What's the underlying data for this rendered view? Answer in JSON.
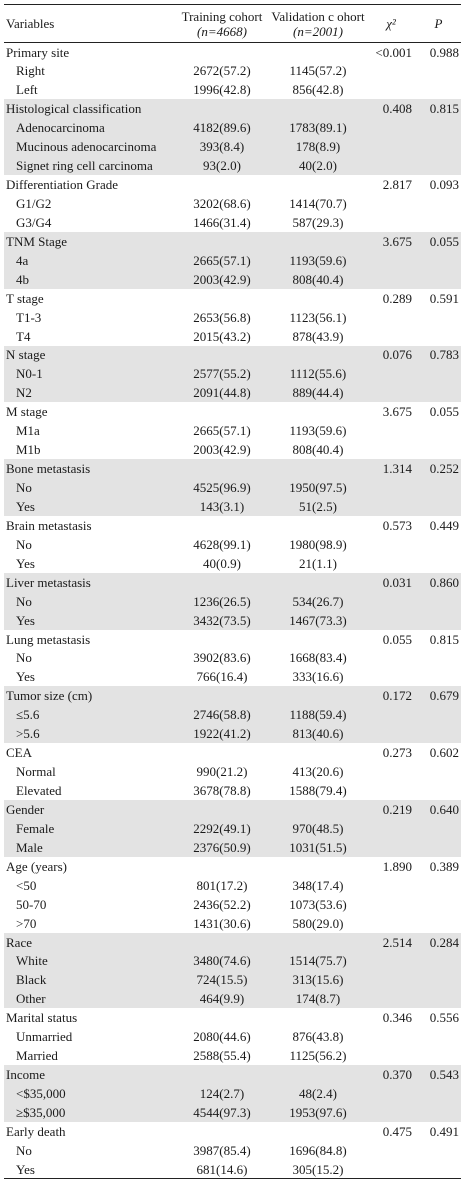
{
  "header": {
    "variables": "Variables",
    "training": "Training cohort",
    "training_n": "(n=4668)",
    "validation": "Validation c ohort",
    "validation_n": "(n=2001)",
    "chi": "χ²",
    "p": "P"
  },
  "groups": [
    {
      "name": "Primary site",
      "chi": "<0.001",
      "p": "0.988",
      "shade": false,
      "levels": [
        {
          "label": "Right",
          "training": "2672(57.2)",
          "validation": "1145(57.2)"
        },
        {
          "label": "Left",
          "training": "1996(42.8)",
          "validation": "856(42.8)"
        }
      ]
    },
    {
      "name": "Histological classification",
      "chi": "0.408",
      "p": "0.815",
      "shade": true,
      "levels": [
        {
          "label": "Adenocarcinoma",
          "training": "4182(89.6)",
          "validation": "1783(89.1)"
        },
        {
          "label": "Mucinous adenocarcinoma",
          "training": "393(8.4)",
          "validation": "178(8.9)"
        },
        {
          "label": "Signet ring cell carcinoma",
          "training": "93(2.0)",
          "validation": "40(2.0)"
        }
      ]
    },
    {
      "name": "Differentiation Grade",
      "chi": "2.817",
      "p": "0.093",
      "shade": false,
      "levels": [
        {
          "label": "G1/G2",
          "training": "3202(68.6)",
          "validation": "1414(70.7)"
        },
        {
          "label": "G3/G4",
          "training": "1466(31.4)",
          "validation": "587(29.3)"
        }
      ]
    },
    {
      "name": "TNM Stage",
      "chi": "3.675",
      "p": "0.055",
      "shade": true,
      "levels": [
        {
          "label": "4a",
          "training": "2665(57.1)",
          "validation": "1193(59.6)"
        },
        {
          "label": "4b",
          "training": "2003(42.9)",
          "validation": "808(40.4)"
        }
      ]
    },
    {
      "name": "T stage",
      "chi": "0.289",
      "p": "0.591",
      "shade": false,
      "levels": [
        {
          "label": "T1-3",
          "training": "2653(56.8)",
          "validation": "1123(56.1)"
        },
        {
          "label": "T4",
          "training": "2015(43.2)",
          "validation": "878(43.9)"
        }
      ]
    },
    {
      "name": "N stage",
      "chi": "0.076",
      "p": "0.783",
      "shade": true,
      "levels": [
        {
          "label": "N0-1",
          "training": "2577(55.2)",
          "validation": "1112(55.6)"
        },
        {
          "label": "N2",
          "training": "2091(44.8)",
          "validation": "889(44.4)"
        }
      ]
    },
    {
      "name": "M stage",
      "chi": "3.675",
      "p": "0.055",
      "shade": false,
      "levels": [
        {
          "label": "M1a",
          "training": "2665(57.1)",
          "validation": "1193(59.6)"
        },
        {
          "label": "M1b",
          "training": "2003(42.9)",
          "validation": "808(40.4)"
        }
      ]
    },
    {
      "name": "Bone metastasis",
      "chi": "1.314",
      "p": "0.252",
      "shade": true,
      "levels": [
        {
          "label": "No",
          "training": "4525(96.9)",
          "validation": "1950(97.5)"
        },
        {
          "label": "Yes",
          "training": "143(3.1)",
          "validation": "51(2.5)"
        }
      ]
    },
    {
      "name": "Brain metastasis",
      "chi": "0.573",
      "p": "0.449",
      "shade": false,
      "levels": [
        {
          "label": "No",
          "training": "4628(99.1)",
          "validation": "1980(98.9)"
        },
        {
          "label": "Yes",
          "training": "40(0.9)",
          "validation": "21(1.1)"
        }
      ]
    },
    {
      "name": "Liver metastasis",
      "chi": "0.031",
      "p": "0.860",
      "shade": true,
      "levels": [
        {
          "label": "No",
          "training": "1236(26.5)",
          "validation": "534(26.7)"
        },
        {
          "label": "Yes",
          "training": "3432(73.5)",
          "validation": "1467(73.3)"
        }
      ]
    },
    {
      "name": "Lung metastasis",
      "chi": "0.055",
      "p": "0.815",
      "shade": false,
      "levels": [
        {
          "label": "No",
          "training": "3902(83.6)",
          "validation": "1668(83.4)"
        },
        {
          "label": "Yes",
          "training": "766(16.4)",
          "validation": "333(16.6)"
        }
      ]
    },
    {
      "name": "Tumor size (cm)",
      "chi": "0.172",
      "p": "0.679",
      "shade": true,
      "levels": [
        {
          "label": "≤5.6",
          "training": "2746(58.8)",
          "validation": "1188(59.4)"
        },
        {
          "label": ">5.6",
          "training": "1922(41.2)",
          "validation": "813(40.6)"
        }
      ]
    },
    {
      "name": "CEA",
      "chi": "0.273",
      "p": "0.602",
      "shade": false,
      "levels": [
        {
          "label": "Normal",
          "training": "990(21.2)",
          "validation": "413(20.6)"
        },
        {
          "label": "Elevated",
          "training": "3678(78.8)",
          "validation": "1588(79.4)"
        }
      ]
    },
    {
      "name": "Gender",
      "chi": "0.219",
      "p": "0.640",
      "shade": true,
      "levels": [
        {
          "label": "Female",
          "training": "2292(49.1)",
          "validation": "970(48.5)"
        },
        {
          "label": "Male",
          "training": "2376(50.9)",
          "validation": "1031(51.5)"
        }
      ]
    },
    {
      "name": "Age (years)",
      "chi": "1.890",
      "p": "0.389",
      "shade": false,
      "levels": [
        {
          "label": "<50",
          "training": "801(17.2)",
          "validation": "348(17.4)"
        },
        {
          "label": "50-70",
          "training": "2436(52.2)",
          "validation": "1073(53.6)"
        },
        {
          "label": ">70",
          "training": "1431(30.6)",
          "validation": "580(29.0)"
        }
      ]
    },
    {
      "name": "Race",
      "chi": "2.514",
      "p": "0.284",
      "shade": true,
      "levels": [
        {
          "label": "White",
          "training": "3480(74.6)",
          "validation": "1514(75.7)"
        },
        {
          "label": "Black",
          "training": "724(15.5)",
          "validation": "313(15.6)"
        },
        {
          "label": "Other",
          "training": "464(9.9)",
          "validation": "174(8.7)"
        }
      ]
    },
    {
      "name": "Marital status",
      "chi": "0.346",
      "p": "0.556",
      "shade": false,
      "levels": [
        {
          "label": "Unmarried",
          "training": "2080(44.6)",
          "validation": "876(43.8)"
        },
        {
          "label": "Married",
          "training": "2588(55.4)",
          "validation": "1125(56.2)"
        }
      ]
    },
    {
      "name": "Income",
      "chi": "0.370",
      "p": "0.543",
      "shade": true,
      "levels": [
        {
          "label": "<$35,000",
          "training": "124(2.7)",
          "validation": "48(2.4)"
        },
        {
          "label": "≥$35,000",
          "training": "4544(97.3)",
          "validation": "1953(97.6)"
        }
      ]
    },
    {
      "name": "Early death",
      "chi": "0.475",
      "p": "0.491",
      "shade": false,
      "levels": [
        {
          "label": "No",
          "training": "3987(85.4)",
          "validation": "1696(84.8)"
        },
        {
          "label": "Yes",
          "training": "681(14.6)",
          "validation": "305(15.2)"
        }
      ]
    }
  ]
}
